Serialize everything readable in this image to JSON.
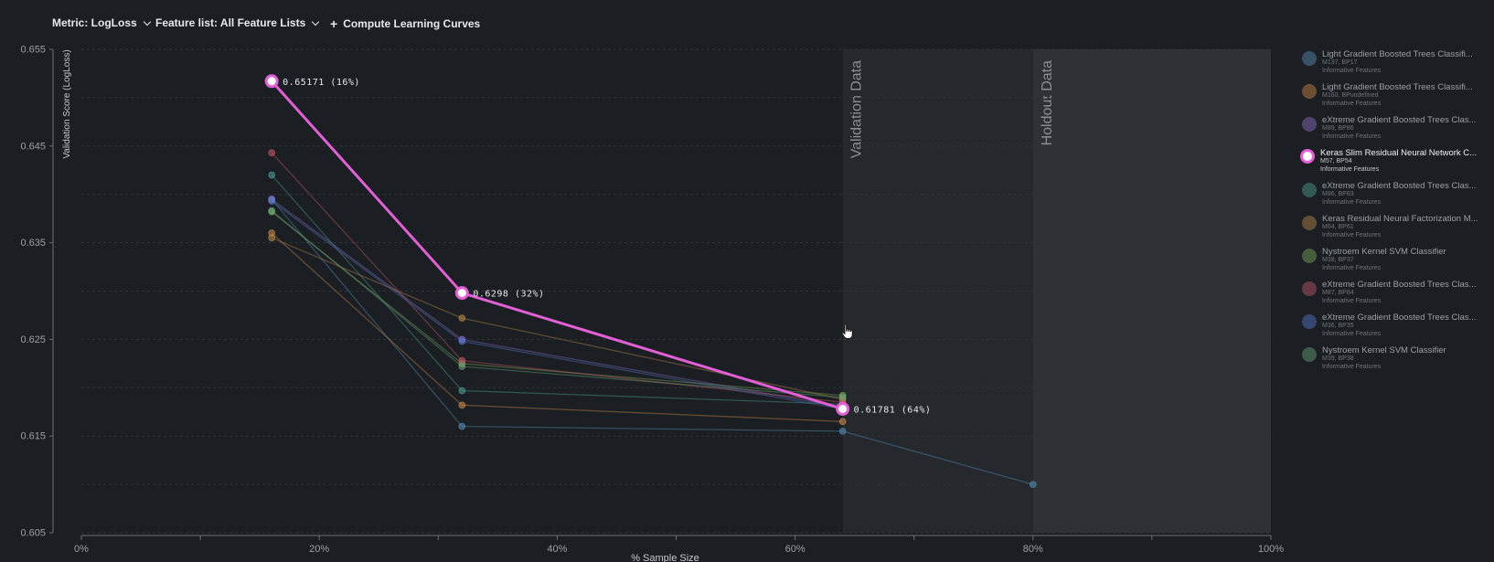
{
  "toolbar": {
    "metric_label": "Metric: LogLoss",
    "featurelist_label": "Feature list: All Feature Lists",
    "compute_label": "Compute Learning Curves"
  },
  "chart_data": {
    "type": "line",
    "ylabel": "Validation Score (LogLoss)",
    "xlabel": "% Sample Size",
    "xlim": [
      0,
      100
    ],
    "ylim": [
      0.605,
      0.655
    ],
    "x_ticks": [
      "0%",
      "20%",
      "40%",
      "60%",
      "80%",
      "100%"
    ],
    "y_ticks": [
      "0.605",
      "0.615",
      "0.625",
      "0.635",
      "0.645",
      "0.655"
    ],
    "grid": true,
    "regions": [
      {
        "label": "Validation Data",
        "from": 64,
        "to": 80
      },
      {
        "label": "Holdout Data",
        "from": 80,
        "to": 100
      }
    ],
    "colors": {
      "background": "#1b1f23",
      "validation_region": "#25292d",
      "holdout_region": "#2e3236",
      "highlight": "#e35fd6"
    },
    "highlight_labels": [
      "0.65171 (16%)",
      "0.6298 (32%)",
      "0.61781 (64%)"
    ],
    "series": [
      {
        "name": "Light Gradient Boosted Trees Classifi...",
        "color": "#5a8fb5",
        "x": [
          16,
          32,
          64,
          80
        ],
        "y": [
          0.6395,
          0.616,
          0.6155,
          0.61
        ]
      },
      {
        "name": "Light Gradient Boosted Trees Classifi...",
        "color": "#d08a4a",
        "x": [
          16,
          32,
          64
        ],
        "y": [
          0.636,
          0.6182,
          0.6165
        ]
      },
      {
        "name": "eXtreme Gradient Boosted Trees Clas...",
        "color": "#8d72c9",
        "x": [
          16,
          32,
          64
        ],
        "y": [
          0.6395,
          0.625,
          0.618
        ]
      },
      {
        "name": "Keras Slim Residual Neural Network C...",
        "color": "#e35fd6",
        "x": [
          16,
          32,
          64
        ],
        "y": [
          0.65171,
          0.6298,
          0.61781
        ],
        "highlight": true
      },
      {
        "name": "eXtreme Gradient Boosted Trees Clas...",
        "color": "#4fa095",
        "x": [
          16,
          32,
          64
        ],
        "y": [
          0.642,
          0.6197,
          0.6183
        ]
      },
      {
        "name": "Keras Residual Neural Factorization M...",
        "color": "#b98a4a",
        "x": [
          16,
          32,
          64
        ],
        "y": [
          0.6355,
          0.6272,
          0.6188
        ]
      },
      {
        "name": "Nystroem Kernel SVM Classifier",
        "color": "#7fa860",
        "x": [
          16,
          32,
          64
        ],
        "y": [
          0.6382,
          0.6225,
          0.6192
        ]
      },
      {
        "name": "eXtreme Gradient Boosted Trees Clas...",
        "color": "#c85a6a",
        "x": [
          16,
          32,
          64
        ],
        "y": [
          0.6443,
          0.6228,
          0.6185
        ]
      },
      {
        "name": "eXtreme Gradient Boosted Trees Clas...",
        "color": "#5a78d0",
        "x": [
          16,
          32,
          64
        ],
        "y": [
          0.6393,
          0.6248,
          0.6178
        ]
      },
      {
        "name": "Nystroem Kernel SVM Classifier",
        "color": "#6aa878",
        "x": [
          16,
          32,
          64
        ],
        "y": [
          0.6383,
          0.6222,
          0.619
        ]
      }
    ]
  },
  "legend": [
    {
      "name": "Light Gradient Boosted Trees Classifi...",
      "ids": "M137, BP17",
      "features": "Informative Features",
      "color": "#5a8fb5"
    },
    {
      "name": "Light Gradient Boosted Trees Classifi...",
      "ids": "M160, BPundefined",
      "features": "Informative Features",
      "color": "#d08a4a"
    },
    {
      "name": "eXtreme Gradient Boosted Trees Clas...",
      "ids": "M89, BP86",
      "features": "Informative Features",
      "color": "#8d72c9"
    },
    {
      "name": "Keras Slim Residual Neural Network C...",
      "ids": "M57, BP54",
      "features": "Informative Features",
      "color": "#e35fd6",
      "active": true
    },
    {
      "name": "eXtreme Gradient Boosted Trees Clas...",
      "ids": "M86, BP83",
      "features": "Informative Features",
      "color": "#4fa095"
    },
    {
      "name": "Keras Residual Neural Factorization M...",
      "ids": "M64, BP61",
      "features": "Informative Features",
      "color": "#b98a4a"
    },
    {
      "name": "Nystroem Kernel SVM Classifier",
      "ids": "M38, BP37",
      "features": "Informative Features",
      "color": "#7fa860"
    },
    {
      "name": "eXtreme Gradient Boosted Trees Clas...",
      "ids": "M87, BP84",
      "features": "Informative Features",
      "color": "#c85a6a"
    },
    {
      "name": "eXtreme Gradient Boosted Trees Clas...",
      "ids": "M36, BP35",
      "features": "Informative Features",
      "color": "#5a78d0"
    },
    {
      "name": "Nystroem Kernel SVM Classifier",
      "ids": "M39, BP38",
      "features": "Informative Features",
      "color": "#6aa878"
    }
  ]
}
